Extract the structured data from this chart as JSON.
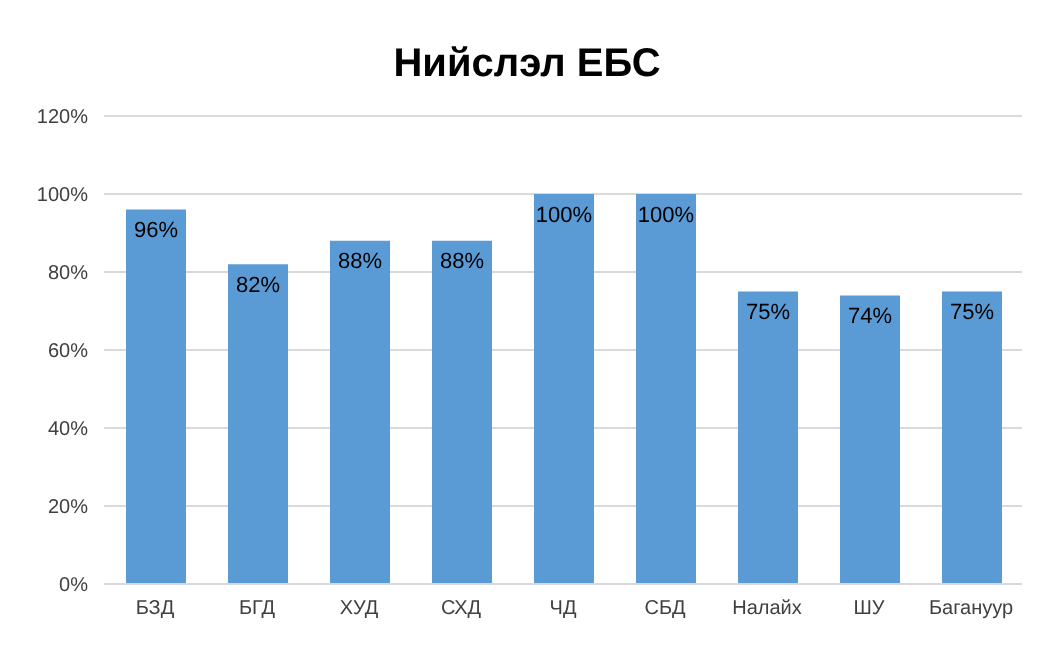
{
  "chart_data": {
    "type": "bar",
    "title": "Нийслэл ЕБС",
    "categories": [
      "БЗД",
      "БГД",
      "ХУД",
      "СХД",
      "ЧД",
      "СБД",
      "Налайх",
      "ШУ",
      "Багануур"
    ],
    "values": [
      96,
      82,
      88,
      88,
      100,
      100,
      75,
      74,
      75
    ],
    "value_labels": [
      "96%",
      "82%",
      "88%",
      "88%",
      "100%",
      "100%",
      "75%",
      "74%",
      "75%"
    ],
    "color": "#5b9bd5",
    "ylim": [
      0,
      120
    ],
    "yticks": [
      {
        "value": 0,
        "label": "0%"
      },
      {
        "value": 20,
        "label": "20%"
      },
      {
        "value": 40,
        "label": "40%"
      },
      {
        "value": 60,
        "label": "60%"
      },
      {
        "value": 80,
        "label": "80%"
      },
      {
        "value": 100,
        "label": "100%"
      },
      {
        "value": 120,
        "label": "120%"
      }
    ],
    "grid": "y",
    "legend": false
  }
}
